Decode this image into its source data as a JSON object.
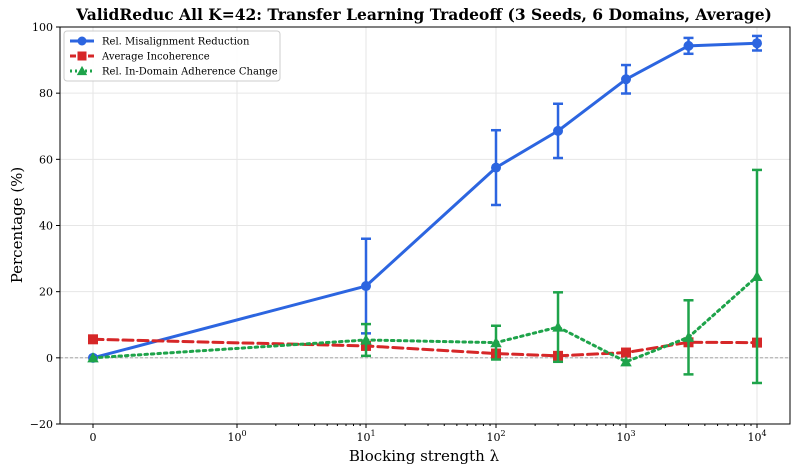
{
  "chart_data": {
    "type": "line",
    "title": "ValidReduc All K=42: Transfer Learning Tradeoff (3 Seeds, 6 Domains, Average)",
    "xlabel": "Blocking strength λ",
    "ylabel": "Percentage (%)",
    "x_tick_labels": [
      {
        "base": "0",
        "exp": ""
      },
      {
        "base": "10",
        "exp": "0"
      },
      {
        "base": "10",
        "exp": "1"
      },
      {
        "base": "10",
        "exp": "2"
      },
      {
        "base": "10",
        "exp": "3"
      },
      {
        "base": "10",
        "exp": "4"
      }
    ],
    "x_scale": "symlog",
    "ylim": [
      -20,
      100
    ],
    "y_ticks": [
      -20,
      0,
      20,
      40,
      60,
      80,
      100
    ],
    "y_tick_labels": [
      "−20",
      "0",
      "20",
      "40",
      "60",
      "80",
      "100"
    ],
    "grid": true,
    "legend_position": "top-left",
    "series": [
      {
        "name": "Rel. Misalignment Reduction",
        "color": "#2c65e0",
        "marker": "circle",
        "line_style": "solid",
        "x": [
          0,
          10,
          100,
          300,
          1000,
          3000,
          10000
        ],
        "y": [
          0,
          21.7,
          57.5,
          68.6,
          84.2,
          94.3,
          95.1
        ],
        "err": [
          0,
          14.3,
          11.3,
          8.2,
          4.3,
          2.4,
          2.2
        ]
      },
      {
        "name": "Average Incoherence",
        "color": "#d62728",
        "marker": "square",
        "line_style": "dashed",
        "x": [
          0,
          10,
          100,
          300,
          1000,
          3000,
          10000
        ],
        "y": [
          5.6,
          3.6,
          1.3,
          0.6,
          1.6,
          4.7,
          4.6
        ],
        "err": [
          0,
          0,
          0,
          0,
          0,
          0,
          0
        ]
      },
      {
        "name": "Rel. In-Domain Adherence Change",
        "color": "#1ea34a",
        "marker": "triangle",
        "line_style": "dotted",
        "x": [
          0,
          10,
          100,
          300,
          1000,
          3000,
          10000
        ],
        "y": [
          0,
          5.4,
          4.6,
          9.3,
          -1.2,
          6.2,
          24.6
        ],
        "err": [
          0,
          4.8,
          5.1,
          10.5,
          0,
          11.2,
          32.2
        ]
      }
    ]
  }
}
